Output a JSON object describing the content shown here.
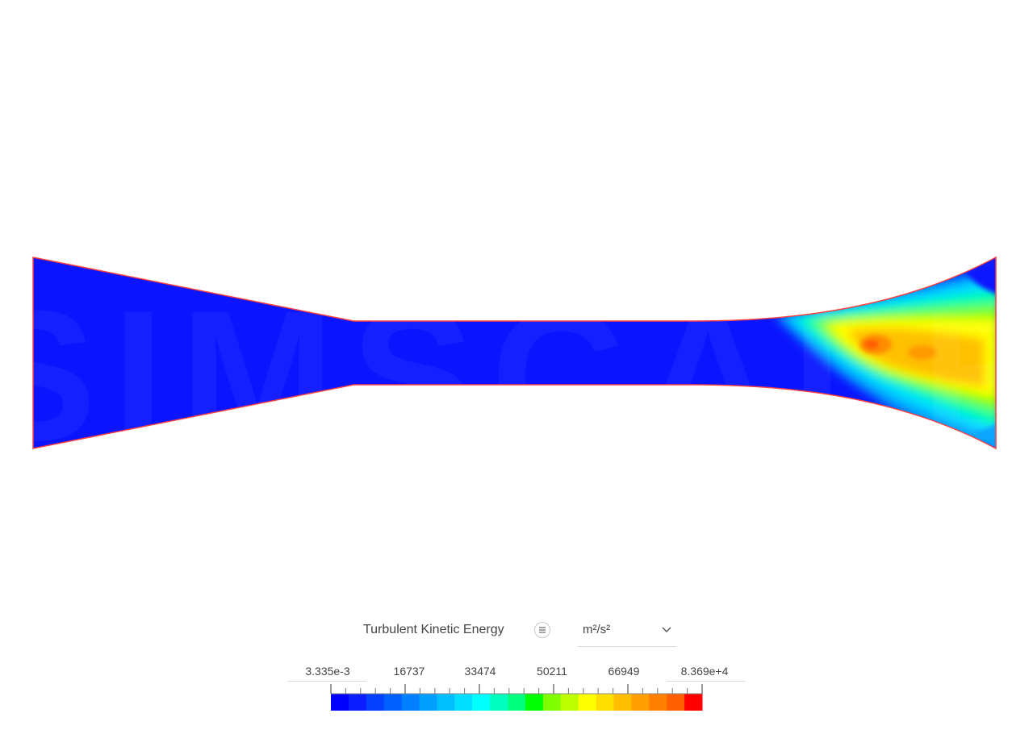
{
  "legend": {
    "title": "Turbulent Kinetic Energy",
    "menu_icon": "menu-lines-icon",
    "unit": "m²/s²",
    "unit_chevron_icon": "chevron-down-icon",
    "tick_labels": [
      "3.335e-3",
      "16737",
      "33474",
      "50211",
      "66949",
      "8.369e+4"
    ],
    "min": 0.003335,
    "max": 83690,
    "colors": [
      "#0000ff",
      "#0a1eff",
      "#0540ff",
      "#0060ff",
      "#0080ff",
      "#00a0ff",
      "#00bfff",
      "#00dfff",
      "#00ffff",
      "#00ffbf",
      "#00ff7f",
      "#00ff00",
      "#7fff00",
      "#bfff00",
      "#ffff00",
      "#ffdf00",
      "#ffbf00",
      "#ff9f00",
      "#ff7f00",
      "#ff5f00",
      "#ff0000"
    ]
  },
  "viewport": {
    "watermark": "SIMSCALE",
    "domain_outline_color": "#ff4040",
    "background_field_color": "#0a14ff"
  }
}
